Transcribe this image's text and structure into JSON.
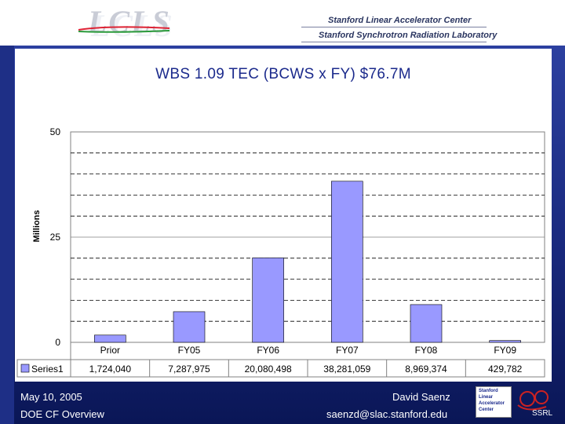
{
  "header": {
    "logo": "LCLS",
    "org_line1": "Stanford Linear Accelerator Center",
    "org_line2": "Stanford Synchrotron Radiation Laboratory"
  },
  "chart_data": {
    "type": "bar",
    "title": "WBS 1.09 TEC (BCWS x FY) $76.7M",
    "ylabel": "Millions",
    "ylim": [
      0,
      50
    ],
    "yticks": [
      "0",
      "25",
      "50"
    ],
    "categories": [
      "Prior",
      "FY05",
      "FY06",
      "FY07",
      "FY08",
      "FY09"
    ],
    "series": [
      {
        "name": "Series1",
        "values": [
          1724040,
          7287975,
          20080498,
          38281059,
          8969374,
          429782
        ],
        "labels": [
          "1,724,040",
          "7,287,975",
          "20,080,498",
          "38,281,059",
          "8,969,374",
          "429,782"
        ]
      }
    ],
    "bar_color": "#9999ff",
    "legend": "bottom-table"
  },
  "footer": {
    "date": "May 10, 2005",
    "event": "DOE CF Overview",
    "name": "David Saenz",
    "email": "saenzd@slac.stanford.edu"
  },
  "slac_logo": [
    "Stanford",
    "Linear",
    "Accelerator",
    "Center"
  ],
  "ssrl_logo": "SSRL"
}
